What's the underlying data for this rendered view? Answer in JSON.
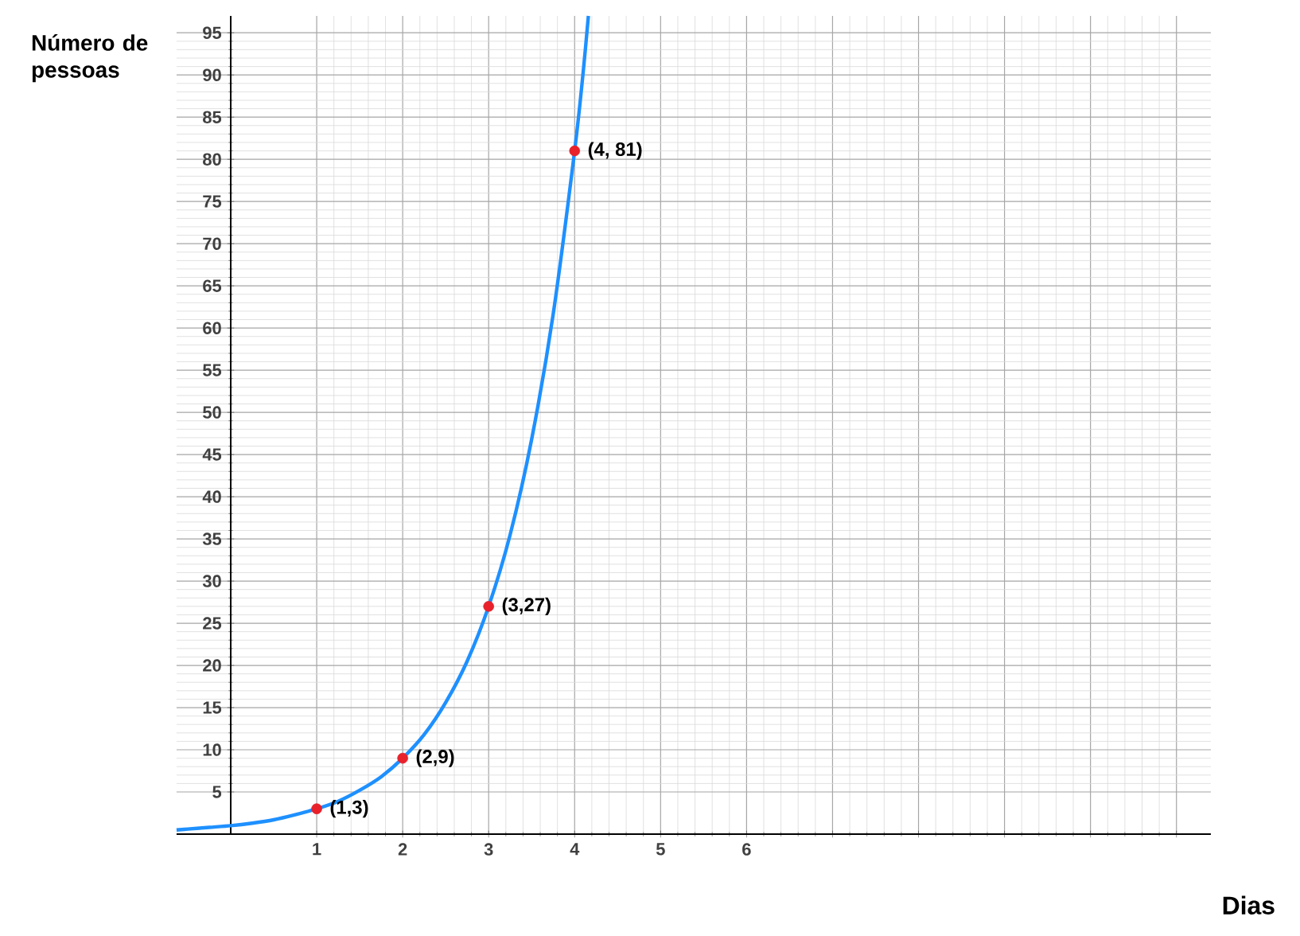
{
  "chart_data": {
    "type": "line",
    "xlabel": "Dias",
    "ylabel": "Número de pessoas",
    "xlim": [
      -0.63,
      11.4
    ],
    "ylim": [
      0,
      97
    ],
    "xticks": [
      1,
      2,
      3,
      4,
      5,
      6,
      {
        "value": 7,
        "label": null
      },
      {
        "value": 8,
        "label": null
      },
      {
        "value": 9,
        "label": null
      },
      {
        "value": 10,
        "label": null
      },
      {
        "value": 11,
        "label": null
      }
    ],
    "yticks": [
      5,
      10,
      15,
      20,
      25,
      30,
      35,
      40,
      45,
      50,
      55,
      60,
      65,
      70,
      75,
      80,
      85,
      90,
      95
    ],
    "grid": true,
    "series": [
      {
        "color": "#1e90ff",
        "marker": "none",
        "x": [
          -0.63,
          -0.5,
          -0.25,
          0,
          0.25,
          0.5,
          0.75,
          1,
          1.25,
          1.5,
          1.75,
          2,
          2.25,
          2.5,
          2.75,
          3,
          3.25,
          3.5,
          3.75,
          4,
          4.1,
          4.16
        ],
        "values": [
          0.5,
          0.6,
          0.8,
          1,
          1.3,
          1.7,
          2.3,
          3,
          3.9,
          5.2,
          6.8,
          9,
          11.8,
          15.6,
          20.5,
          27,
          35.5,
          46.8,
          61.6,
          81,
          90.4,
          97
        ]
      },
      {
        "type": "scatter",
        "color": "#e8212b",
        "marker": "circle",
        "x": [
          1,
          2,
          3,
          4
        ],
        "values": [
          3,
          9,
          27,
          81
        ]
      }
    ],
    "annotations": [
      {
        "text": "(1,3)",
        "x": 1,
        "y": 3
      },
      {
        "text": "(2,9)",
        "x": 2,
        "y": 9
      },
      {
        "text": "(3,27)",
        "x": 3,
        "y": 27
      },
      {
        "text": "(4, 81)",
        "x": 4,
        "y": 81
      }
    ]
  }
}
